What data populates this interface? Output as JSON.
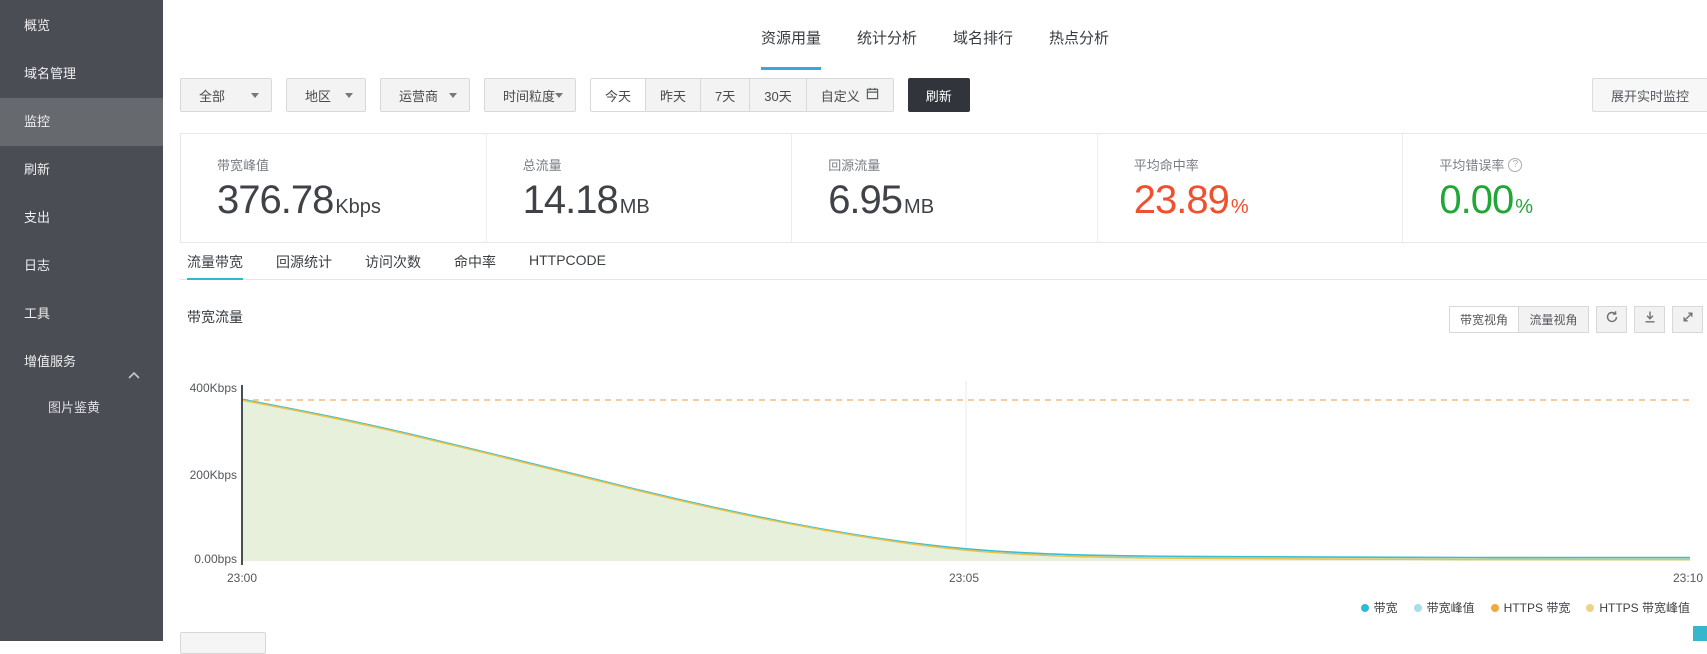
{
  "sidebar": {
    "items": [
      {
        "label": "概览"
      },
      {
        "label": "域名管理"
      },
      {
        "label": "监控",
        "active": true
      },
      {
        "label": "刷新"
      },
      {
        "label": "支出"
      },
      {
        "label": "日志"
      },
      {
        "label": "工具"
      },
      {
        "label": "增值服务",
        "expanded": true
      }
    ],
    "subitems": [
      {
        "label": "图片鉴黄"
      }
    ]
  },
  "header": {
    "tabs": [
      {
        "label": "资源用量",
        "active": true
      },
      {
        "label": "统计分析"
      },
      {
        "label": "域名排行"
      },
      {
        "label": "热点分析"
      }
    ],
    "active_underline_color": "#38A6E3"
  },
  "filters": {
    "dropdowns": [
      {
        "label": "全部"
      },
      {
        "label": "地区"
      },
      {
        "label": "运营商"
      },
      {
        "label": "时间粒度"
      }
    ],
    "ranges": [
      {
        "label": "今天",
        "active": true
      },
      {
        "label": "昨天"
      },
      {
        "label": "7天"
      },
      {
        "label": "30天"
      },
      {
        "label": "自定义",
        "icon": "calendar-icon"
      }
    ],
    "refresh_label": "刷新",
    "expand_realtime_label": "展开实时监控"
  },
  "stats": {
    "help_glyph": "?",
    "cards": [
      {
        "label": "带宽峰值",
        "value": "376.78",
        "unit": "Kbps",
        "value_color": "#3F4247"
      },
      {
        "label": "总流量",
        "value": "14.18",
        "unit": "MB",
        "value_color": "#3F4247"
      },
      {
        "label": "回源流量",
        "value": "6.95",
        "unit": "MB",
        "value_color": "#3F4247"
      },
      {
        "label": "平均命中率",
        "value": "23.89",
        "unit": "%",
        "value_color": "#F0502F"
      },
      {
        "label": "平均错误率",
        "value": "0.00",
        "unit": "%",
        "value_color": "#21A737",
        "has_help": true
      }
    ]
  },
  "subtabs": {
    "active_underline_color": "#36B5CE",
    "items": [
      {
        "label": "流量带宽",
        "active": true
      },
      {
        "label": "回源统计"
      },
      {
        "label": "访问次数"
      },
      {
        "label": "命中率"
      },
      {
        "label": "HTTPCODE"
      }
    ]
  },
  "chart_header": {
    "title": "带宽流量",
    "view_buttons": [
      {
        "label": "带宽视角",
        "active": true
      },
      {
        "label": "流量视角"
      }
    ],
    "icon_buttons": [
      "refresh-icon",
      "download-icon",
      "expand-icon"
    ]
  },
  "chart_data": {
    "type": "area",
    "title": "带宽流量",
    "x_tick_labels": [
      "23:00",
      "23:05",
      "23:10"
    ],
    "x_tick_minutes": [
      0,
      5,
      10
    ],
    "x_range_minutes": [
      0,
      10
    ],
    "y_tick_labels": [
      "0.00bps",
      "200Kbps",
      "400Kbps"
    ],
    "y_tick_values_kbps": [
      0,
      200,
      400
    ],
    "ylim_kbps": [
      0,
      432
    ],
    "grid": {
      "vertical_gridline_at_minute": 5
    },
    "area_fill": "#E6F0DB",
    "series": [
      {
        "name": "带宽",
        "color": "#35BFD9",
        "x_minutes": [
          0,
          0.5,
          1,
          1.5,
          2,
          2.5,
          3,
          3.5,
          4,
          4.5,
          5,
          5.5,
          6,
          7,
          8,
          9,
          10
        ],
        "values_kbps": [
          376,
          344,
          308,
          268,
          227,
          185,
          144,
          107,
          74,
          47,
          27,
          17,
          12,
          9.5,
          8.5,
          8,
          8
        ]
      },
      {
        "name": "HTTPS 带宽",
        "color": "#E8C24A",
        "x_minutes": [
          0,
          0.5,
          1,
          1.5,
          2,
          2.5,
          3,
          3.5,
          4,
          4.5,
          5,
          5.5,
          6,
          7,
          8,
          9,
          10
        ],
        "values_kbps": [
          374,
          342,
          306,
          266,
          225,
          183,
          142,
          105,
          72,
          45,
          24,
          13,
          8,
          5,
          4,
          3.5,
          3.5
        ]
      }
    ],
    "peak_lines": [
      {
        "name": "HTTPS 带宽峰值",
        "value_kbps": 374.5,
        "color": "#F2BA84",
        "style": "dashed"
      }
    ],
    "legend_position": "bottom-right",
    "legend": [
      {
        "label": "带宽",
        "color": "#2FB9D6"
      },
      {
        "label": "带宽峰值",
        "color": "#A6DEEA"
      },
      {
        "label": "HTTPS 带宽",
        "color": "#F0A93C"
      },
      {
        "label": "HTTPS 带宽峰值",
        "color": "#EDD289"
      }
    ]
  },
  "misc": {
    "corner_widget_color": "#38B6CB"
  }
}
